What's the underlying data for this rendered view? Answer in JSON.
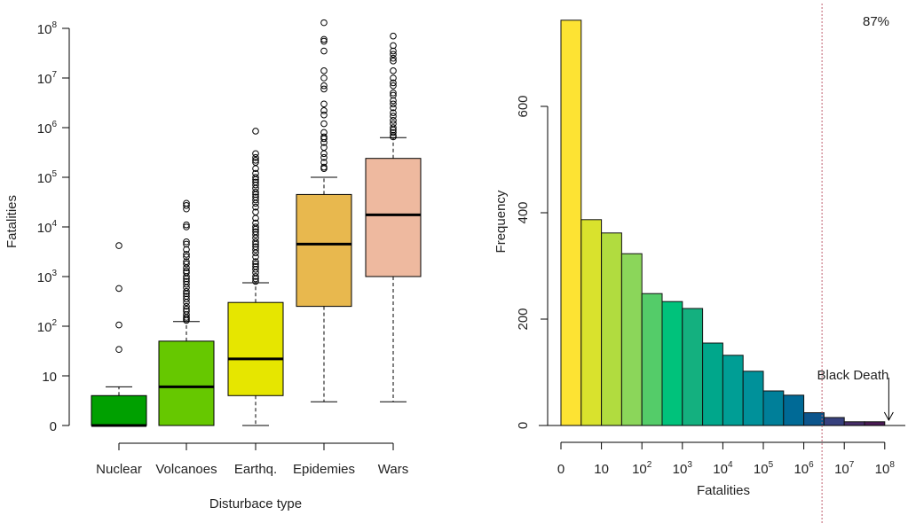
{
  "chart_data": [
    {
      "type": "boxplot",
      "xlabel": "Disturbace type",
      "ylabel": "Fatalities",
      "yscale": "log (0 shown at bottom)",
      "yticks": [
        {
          "base": "0",
          "exp": ""
        },
        {
          "base": "10",
          "exp": ""
        },
        {
          "base": "10",
          "exp": "2"
        },
        {
          "base": "10",
          "exp": "3"
        },
        {
          "base": "10",
          "exp": "4"
        },
        {
          "base": "10",
          "exp": "5"
        },
        {
          "base": "10",
          "exp": "6"
        },
        {
          "base": "10",
          "exp": "7"
        },
        {
          "base": "10",
          "exp": "8"
        }
      ],
      "grid": false,
      "categories": [
        "Nuclear",
        "Volcanoes",
        "Earthq.",
        "Epidemies",
        "Wars"
      ],
      "boxes": [
        {
          "category": "Nuclear",
          "color": "#00A000",
          "whisker_low": 0,
          "q1": 0,
          "median": 0,
          "q3": 3,
          "whisker_high": 5,
          "outliers": [
            4200,
            575,
            105,
            33
          ]
        },
        {
          "category": "Volcanoes",
          "color": "#66C800",
          "whisker_low": 0,
          "q1": 0,
          "median": 5,
          "q3": 49,
          "whisker_high": 123,
          "outliers": [
            30000,
            27000,
            23000,
            11000,
            10000,
            5000,
            4500,
            3500,
            2800,
            2500,
            2000,
            1800,
            1500,
            1300,
            1200,
            1000,
            900,
            800,
            700,
            600,
            500,
            450,
            400,
            350,
            300,
            250,
            220,
            200,
            170,
            150,
            140,
            130
          ]
        },
        {
          "category": "Earthq.",
          "color": "#E6E600",
          "whisker_low": 0,
          "q1": 3,
          "median": 21,
          "q3": 300,
          "whisker_high": 750,
          "outliers": [
            850000,
            300000,
            250000,
            220000,
            200000,
            150000,
            120000,
            100000,
            90000,
            80000,
            70000,
            60000,
            50000,
            45000,
            40000,
            35000,
            30000,
            25000,
            20000,
            15000,
            12000,
            10000,
            9000,
            8000,
            7000,
            6000,
            5000,
            4500,
            4000,
            3500,
            3000,
            2500,
            2000,
            1800,
            1600,
            1400,
            1200,
            1000,
            900,
            800
          ]
        },
        {
          "category": "Epidemies",
          "color": "#E8B84E",
          "whisker_low": 2,
          "q1": 250,
          "median": 4500,
          "q3": 45000,
          "whisker_high": 100000,
          "outliers": [
            130000000,
            60000000,
            55000000,
            35000000,
            14000000,
            10000000,
            7000000,
            6000000,
            3000000,
            2200000,
            1800000,
            1200000,
            800000,
            650000,
            600000,
            500000,
            400000,
            300000,
            250000,
            200000,
            160000,
            150000
          ]
        },
        {
          "category": "Wars",
          "color": "#EEB99F",
          "whisker_low": 2,
          "q1": 1000,
          "median": 17500,
          "q3": 240000,
          "whisker_high": 630000,
          "outliers": [
            70000000,
            45000000,
            35000000,
            30000000,
            25000000,
            22000000,
            14000000,
            10000000,
            8000000,
            7000000,
            5000000,
            4500000,
            3500000,
            3000000,
            2500000,
            2000000,
            1700000,
            1400000,
            1200000,
            1000000,
            900000,
            800000,
            700000,
            650000
          ]
        }
      ]
    },
    {
      "type": "bar",
      "subtype": "histogram",
      "xlabel": "Fatalities",
      "ylabel": "Frequency",
      "xscale": "log (0 shown at left)",
      "xticks": [
        {
          "base": "0",
          "exp": ""
        },
        {
          "base": "10",
          "exp": ""
        },
        {
          "base": "10",
          "exp": "2"
        },
        {
          "base": "10",
          "exp": "3"
        },
        {
          "base": "10",
          "exp": "4"
        },
        {
          "base": "10",
          "exp": "5"
        },
        {
          "base": "10",
          "exp": "6"
        },
        {
          "base": "10",
          "exp": "7"
        },
        {
          "base": "10",
          "exp": "8"
        }
      ],
      "yticks": [
        "0",
        "200",
        "400",
        "600"
      ],
      "ylim": [
        0,
        770
      ],
      "grid": false,
      "bin_width_decades": 0.5,
      "values": [
        762,
        387,
        362,
        323,
        248,
        233,
        220,
        155,
        132,
        102,
        65,
        57,
        24,
        15,
        7,
        7
      ],
      "colors": [
        "#FDE333",
        "#D9E22D",
        "#B1DC3F",
        "#8BD65A",
        "#54CC69",
        "#00C27B",
        "#14B07F",
        "#00A78B",
        "#009E95",
        "#00919A",
        "#007F99",
        "#006A96",
        "#0B558C",
        "#37417E",
        "#482E6A",
        "#4B1B56"
      ],
      "threshold_line_decades": 6.45,
      "threshold_color": "#C06070",
      "percent_label": "87%",
      "annotation": {
        "text": "Black Death",
        "at_decades": 8.1
      }
    }
  ]
}
